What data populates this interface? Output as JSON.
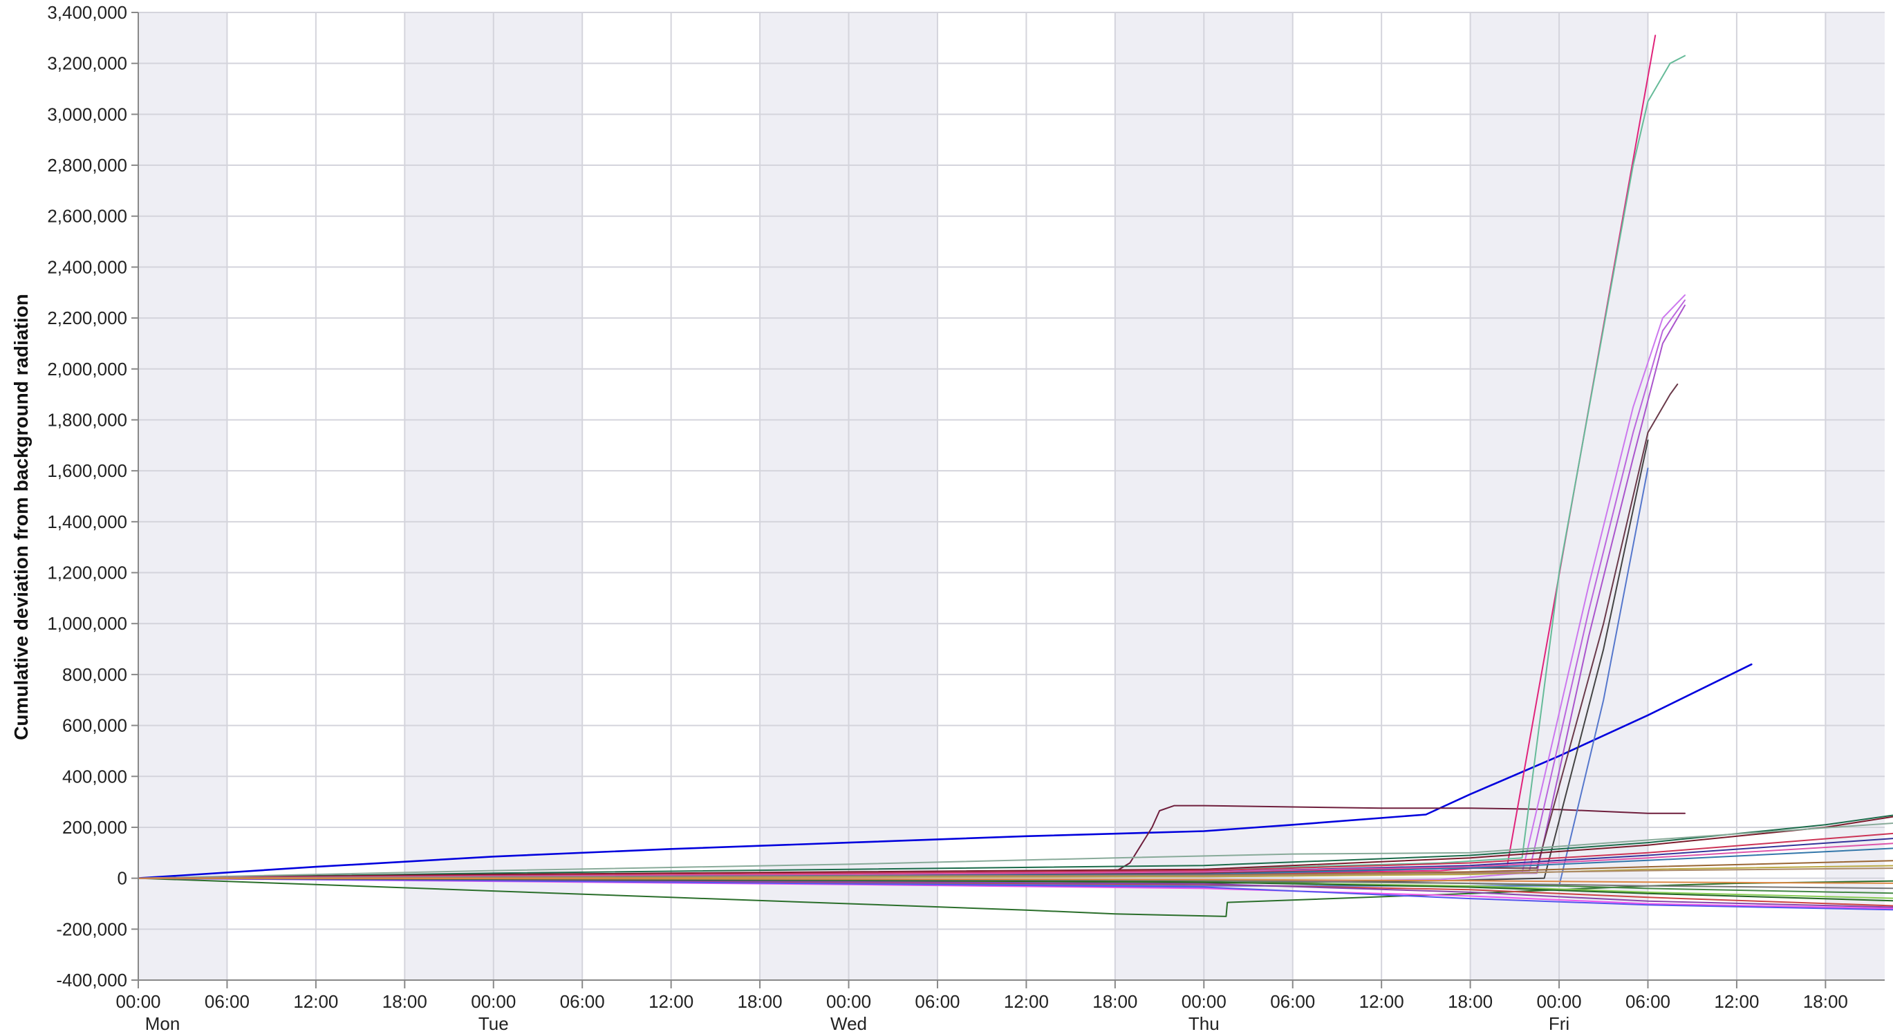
{
  "chart_data": {
    "type": "line",
    "title": "",
    "xlabel": "",
    "ylabel": "Cumulative deviation from background radiation",
    "ylim": [
      -400000,
      3400000
    ],
    "xlim_hours": [
      0,
      118
    ],
    "x_ticks": [
      "00:00",
      "06:00",
      "12:00",
      "18:00",
      "00:00",
      "06:00",
      "12:00",
      "18:00",
      "00:00",
      "06:00",
      "12:00",
      "18:00",
      "00:00",
      "06:00",
      "12:00",
      "18:00",
      "00:00",
      "06:00",
      "12:00",
      "18:00"
    ],
    "day_labels": [
      "Mon",
      "Tue",
      "Wed",
      "Thu",
      "Fri"
    ],
    "y_ticks": [
      "3,400,000",
      "3,200,000",
      "3,000,000",
      "2,800,000",
      "2,600,000",
      "2,400,000",
      "2,200,000",
      "2,000,000",
      "1,800,000",
      "1,600,000",
      "1,400,000",
      "1,200,000",
      "1,000,000",
      "800,000",
      "600,000",
      "400,000",
      "200,000",
      "0",
      "-200,000",
      "-400,000"
    ],
    "grid": true,
    "night_shading": true,
    "colors": {
      "night_band": "#eeeef4",
      "grid": "#d4d4dc",
      "axis": "#888888"
    },
    "series": [
      {
        "color": "#0000dd",
        "x": [
          "Mon 00:00",
          "Mon 12:00",
          "Tue 00:00",
          "Tue 12:00",
          "Wed 00:00",
          "Wed 12:00",
          "Thu 00:00",
          "Thu 06:00",
          "Thu 15:00",
          "Thu 18:00",
          "Fri 00:00",
          "Fri 06:00",
          "Fri 13:00"
        ],
        "y": [
          0,
          45000,
          85000,
          115000,
          140000,
          165000,
          185000,
          210000,
          250000,
          330000,
          480000,
          640000,
          840000
        ]
      },
      {
        "color": "#6e1e3c",
        "x": [
          "Mon 00:00",
          "Wed 00:00",
          "Wed 18:00",
          "Wed 19:00",
          "Wed 20:30",
          "Wed 21:00",
          "Wed 22:00",
          "Thu 00:00",
          "Thu 06:00",
          "Thu 12:00",
          "Thu 18:00",
          "Fri 00:00",
          "Fri 06:00",
          "Fri 08:30"
        ],
        "y": [
          0,
          15000,
          25000,
          60000,
          200000,
          265000,
          285000,
          285000,
          280000,
          275000,
          275000,
          270000,
          255000,
          255000
        ]
      },
      {
        "color": "#2a6e2a",
        "x": [
          "Mon 00:00",
          "Mon 12:00",
          "Tue 00:00",
          "Tue 12:00",
          "Wed 00:00",
          "Wed 12:00",
          "Wed 18:00",
          "Thu 01:30",
          "Thu 01:35",
          "Thu 04:00",
          "Thu 18:00",
          "Fri 06:00",
          "Fri 12:00",
          "Fri 18:00",
          "Fri 23:30"
        ],
        "y": [
          0,
          -25000,
          -50000,
          -75000,
          -100000,
          -125000,
          -140000,
          -150000,
          -95000,
          -90000,
          -60000,
          -30000,
          -20000,
          -15000,
          -10000
        ]
      },
      {
        "color": "#e0237a",
        "x": [
          "Mon 00:00",
          "Tue 00:00",
          "Wed 00:00",
          "Thu 00:00",
          "Thu 16:00",
          "Thu 20:30",
          "Fri 06:30"
        ],
        "y": [
          0,
          5000,
          10000,
          15000,
          30000,
          50000,
          3310000
        ]
      },
      {
        "color": "#66bb99",
        "x": [
          "Mon 00:00",
          "Tue 00:00",
          "Wed 00:00",
          "Thu 00:00",
          "Thu 16:00",
          "Thu 21:30",
          "Fri 00:00",
          "Fri 05:00",
          "Fri 06:00",
          "Fri 07:30",
          "Fri 08:30"
        ],
        "y": [
          0,
          8000,
          20000,
          35000,
          60000,
          80000,
          1200000,
          2800000,
          3050000,
          3200000,
          3230000
        ]
      },
      {
        "color": "#cc77ee",
        "x": [
          "Mon 00:00",
          "Tue 00:00",
          "Wed 00:00",
          "Thu 00:00",
          "Thu 16:00",
          "Thu 21:30",
          "Fri 02:00",
          "Fri 05:00",
          "Fri 07:00",
          "Fri 08:30"
        ],
        "y": [
          0,
          -5000,
          -10000,
          -15000,
          -5000,
          20000,
          1150000,
          1850000,
          2200000,
          2290000
        ]
      },
      {
        "color": "#bb66dd",
        "x": [
          "Mon 00:00",
          "Tue 00:00",
          "Wed 00:00",
          "Thu 00:00",
          "Thu 16:00",
          "Thu 22:00",
          "Fri 02:00",
          "Fri 05:00",
          "Fri 07:00",
          "Fri 08:30"
        ],
        "y": [
          0,
          3000,
          6000,
          9000,
          20000,
          30000,
          1050000,
          1750000,
          2150000,
          2270000
        ]
      },
      {
        "color": "#aa55cc",
        "x": [
          "Mon 00:00",
          "Tue 00:00",
          "Wed 00:00",
          "Thu 00:00",
          "Thu 16:00",
          "Thu 22:30",
          "Fri 02:00",
          "Fri 05:00",
          "Fri 07:00",
          "Fri 08:30"
        ],
        "y": [
          0,
          2000,
          4000,
          6000,
          15000,
          20000,
          950000,
          1650000,
          2100000,
          2250000
        ]
      },
      {
        "color": "#6a3a4a",
        "x": [
          "Mon 00:00",
          "Tue 00:00",
          "Wed 00:00",
          "Thu 00:00",
          "Thu 16:00",
          "Thu 22:30",
          "Fri 03:00",
          "Fri 06:00",
          "Fri 07:30",
          "Fri 08:00"
        ],
        "y": [
          0,
          8000,
          15000,
          20000,
          40000,
          40000,
          1000000,
          1750000,
          1900000,
          1940000
        ]
      },
      {
        "color": "#444444",
        "x": [
          "Mon 00:00",
          "Tue 00:00",
          "Wed 00:00",
          "Thu 00:00",
          "Thu 16:00",
          "Thu 23:00",
          "Fri 03:00",
          "Fri 06:00"
        ],
        "y": [
          0,
          -8000,
          -15000,
          -20000,
          -10000,
          0,
          900000,
          1720000
        ]
      },
      {
        "color": "#5577cc",
        "x": [
          "Mon 00:00",
          "Tue 00:00",
          "Wed 00:00",
          "Thu 00:00",
          "Thu 16:00",
          "Fri 00:00",
          "Fri 03:00",
          "Fri 06:00"
        ],
        "y": [
          0,
          -10000,
          -20000,
          -30000,
          -30000,
          -30000,
          700000,
          1610000
        ]
      },
      {
        "color": "#1b6b4a",
        "x": [
          "Mon 00:00",
          "Tue 00:00",
          "Wed 00:00",
          "Thu 00:00",
          "Thu 18:00",
          "Fri 06:00",
          "Fri 18:00",
          "Fri 23:30"
        ],
        "y": [
          0,
          20000,
          35000,
          50000,
          90000,
          140000,
          210000,
          255000
        ]
      },
      {
        "color": "#7a1a2a",
        "x": [
          "Mon 00:00",
          "Tue 00:00",
          "Wed 00:00",
          "Thu 00:00",
          "Thu 18:00",
          "Fri 06:00",
          "Fri 18:00",
          "Fri 23:30"
        ],
        "y": [
          0,
          15000,
          25000,
          35000,
          80000,
          130000,
          200000,
          250000
        ]
      },
      {
        "color": "#88aa99",
        "x": [
          "Mon 00:00",
          "Tue 00:00",
          "Wed 00:00",
          "Wed 18:00",
          "Thu 06:00",
          "Thu 18:00",
          "Fri 06:00",
          "Fri 23:30"
        ],
        "y": [
          0,
          30000,
          55000,
          80000,
          95000,
          100000,
          150000,
          220000
        ]
      },
      {
        "color": "#cc3355",
        "x": [
          "Mon 00:00",
          "Tue 00:00",
          "Wed 00:00",
          "Thu 00:00",
          "Thu 18:00",
          "Fri 06:00",
          "Fri 23:30"
        ],
        "y": [
          0,
          10000,
          20000,
          30000,
          60000,
          100000,
          180000
        ]
      },
      {
        "color": "#333399",
        "x": [
          "Mon 00:00",
          "Tue 00:00",
          "Wed 00:00",
          "Thu 00:00",
          "Thu 18:00",
          "Fri 06:00",
          "Fri 23:30"
        ],
        "y": [
          0,
          5000,
          15000,
          25000,
          50000,
          90000,
          160000
        ]
      },
      {
        "color": "#dd55aa",
        "x": [
          "Mon 00:00",
          "Tue 00:00",
          "Wed 00:00",
          "Thu 00:00",
          "Thu 18:00",
          "Fri 06:00",
          "Fri 23:30"
        ],
        "y": [
          0,
          8000,
          15000,
          25000,
          45000,
          80000,
          140000
        ]
      },
      {
        "color": "#3377aa",
        "x": [
          "Mon 00:00",
          "Tue 00:00",
          "Wed 00:00",
          "Thu 00:00",
          "Thu 18:00",
          "Fri 06:00",
          "Fri 23:30"
        ],
        "y": [
          0,
          5000,
          10000,
          15000,
          40000,
          70000,
          120000
        ]
      },
      {
        "color": "#996633",
        "x": [
          "Mon 00:00",
          "Tue 00:00",
          "Wed 00:00",
          "Thu 00:00",
          "Thu 18:00",
          "Fri 06:00",
          "Fri 23:30"
        ],
        "y": [
          0,
          3000,
          8000,
          12000,
          25000,
          45000,
          70000
        ]
      },
      {
        "color": "#bbaa44",
        "x": [
          "Mon 00:00",
          "Tue 00:00",
          "Wed 00:00",
          "Thu 00:00",
          "Thu 18:00",
          "Fri 06:00",
          "Fri 23:30"
        ],
        "y": [
          0,
          2000,
          4000,
          6000,
          15000,
          35000,
          50000
        ]
      },
      {
        "color": "#448844",
        "x": [
          "Mon 00:00",
          "Tue 00:00",
          "Wed 00:00",
          "Thu 00:00",
          "Thu 18:00",
          "Fri 06:00",
          "Fri 23:30"
        ],
        "y": [
          0,
          -3000,
          -6000,
          -10000,
          -20000,
          -40000,
          -60000
        ]
      },
      {
        "color": "#88cc55",
        "x": [
          "Mon 00:00",
          "Tue 00:00",
          "Wed 00:00",
          "Thu 00:00",
          "Thu 18:00",
          "Fri 06:00",
          "Fri 23:30"
        ],
        "y": [
          0,
          -5000,
          -10000,
          -15000,
          -30000,
          -55000,
          -80000
        ]
      },
      {
        "color": "#cc4444",
        "x": [
          "Mon 00:00",
          "Tue 00:00",
          "Wed 00:00",
          "Thu 00:00",
          "Thu 18:00",
          "Fri 06:00",
          "Fri 23:30"
        ],
        "y": [
          0,
          -8000,
          -16000,
          -25000,
          -45000,
          -75000,
          -110000
        ]
      },
      {
        "color": "#ee55ee",
        "x": [
          "Mon 00:00",
          "Tue 00:00",
          "Wed 00:00",
          "Thu 00:00",
          "Thu 18:00",
          "Fri 06:00",
          "Fri 23:30"
        ],
        "y": [
          0,
          -12000,
          -25000,
          -40000,
          -70000,
          -100000,
          -120000
        ]
      },
      {
        "color": "#5555ee",
        "x": [
          "Mon 00:00",
          "Tue 00:00",
          "Wed 00:00",
          "Thu 00:00",
          "Thu 18:00",
          "Fri 06:00",
          "Fri 23:30"
        ],
        "y": [
          0,
          -10000,
          -22000,
          -35000,
          -80000,
          -105000,
          -125000
        ]
      },
      {
        "color": "#8844aa",
        "x": [
          "Mon 00:00",
          "Tue 00:00",
          "Wed 00:00",
          "Thu 00:00",
          "Thu 18:00",
          "Fri 06:00",
          "Fri 23:30"
        ],
        "y": [
          0,
          -6000,
          -14000,
          -22000,
          -55000,
          -90000,
          -115000
        ]
      },
      {
        "color": "#226622",
        "x": [
          "Mon 00:00",
          "Tue 00:00",
          "Wed 00:00",
          "Thu 00:00",
          "Thu 18:00",
          "Fri 06:00",
          "Fri 23:30"
        ],
        "y": [
          0,
          -4000,
          -9000,
          -15000,
          -35000,
          -60000,
          -90000
        ]
      },
      {
        "color": "#777777",
        "x": [
          "Mon 00:00",
          "Tue 00:00",
          "Wed 00:00",
          "Thu 00:00",
          "Thu 18:00",
          "Fri 06:00",
          "Fri 23:30"
        ],
        "y": [
          0,
          -2000,
          -5000,
          -8000,
          -20000,
          -30000,
          -40000
        ]
      },
      {
        "color": "#aa8866",
        "x": [
          "Mon 00:00",
          "Tue 00:00",
          "Wed 00:00",
          "Thu 00:00",
          "Thu 18:00",
          "Fri 06:00",
          "Fri 23:30"
        ],
        "y": [
          0,
          4000,
          8000,
          10000,
          20000,
          30000,
          40000
        ]
      },
      {
        "color": "#dd8844",
        "x": [
          "Mon 00:00",
          "Tue 00:00",
          "Wed 00:00",
          "Thu 00:00",
          "Thu 18:00",
          "Fri 06:00",
          "Fri 23:30"
        ],
        "y": [
          0,
          -1000,
          -3000,
          -5000,
          -10000,
          -15000,
          -20000
        ]
      }
    ]
  }
}
